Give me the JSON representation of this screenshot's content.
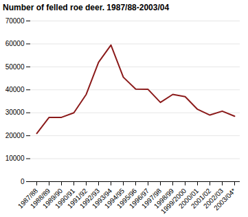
{
  "chart_data": {
    "type": "line",
    "title": "Number of felled roe deer. 1987/88-2003/04",
    "categories": [
      "1987/88",
      "1988/89",
      "1989/90",
      "1990/91",
      "1991/92",
      "1992/93",
      "1993/94",
      "1994/95",
      "1995/96",
      "1996/97",
      "1997/98",
      "1998/99",
      "1999/2000",
      "2000/01",
      "2001/02",
      "2002/03",
      "2003/04*"
    ],
    "values": [
      21000,
      28000,
      28000,
      30000,
      38000,
      52000,
      59500,
      45500,
      40300,
      40200,
      34500,
      38000,
      37000,
      31500,
      29000,
      30700,
      28500
    ],
    "color": "#8b1a1a",
    "ylim": [
      0,
      70000
    ],
    "yticks": [
      0,
      10000,
      20000,
      30000,
      40000,
      50000,
      60000,
      70000
    ],
    "grid": true
  }
}
